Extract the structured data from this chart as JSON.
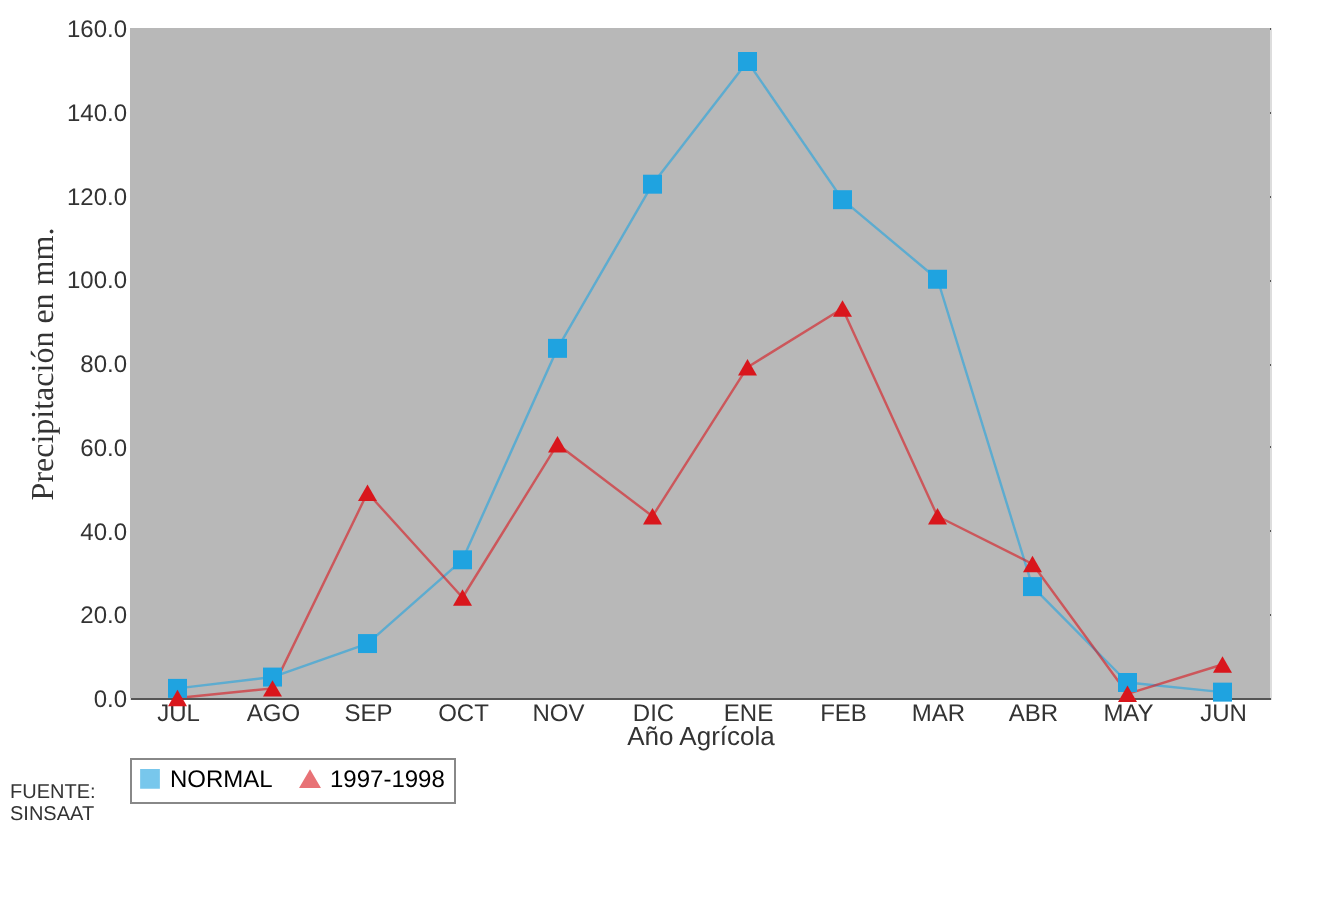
{
  "chart_data": {
    "type": "line",
    "xlabel": "Año Agrícola",
    "ylabel": "Precipitación en mm.",
    "categories": [
      "JUL",
      "AGO",
      "SEP",
      "OCT",
      "NOV",
      "DIC",
      "ENE",
      "FEB",
      "MAR",
      "ABR",
      "MAY",
      "JUN"
    ],
    "series": [
      {
        "name": "NORMAL",
        "color": "#1fa3e0",
        "marker": "square",
        "values": [
          2.3,
          5,
          13,
          33,
          83.5,
          122.7,
          152,
          119,
          100,
          26.6,
          3.7,
          1.4
        ]
      },
      {
        "name": "1997-1998",
        "color": "#d9161c",
        "marker": "triangle",
        "values": [
          0,
          2.3,
          49,
          24,
          60.6,
          43.4,
          79,
          93,
          43.4,
          32,
          1,
          8
        ]
      }
    ],
    "ylim": [
      0,
      160
    ],
    "yticks": [
      {
        "value": 0,
        "label": "0.0"
      },
      {
        "value": 20,
        "label": "20.0"
      },
      {
        "value": 40,
        "label": "40.0"
      },
      {
        "value": 60,
        "label": "60.0"
      },
      {
        "value": 80,
        "label": "80.0"
      },
      {
        "value": 100,
        "label": "100.0"
      },
      {
        "value": 120,
        "label": "120.0"
      },
      {
        "value": 140,
        "label": "140.0"
      },
      {
        "value": 160,
        "label": "160.0"
      }
    ],
    "grid": true,
    "legend": "bottom",
    "line_style": "solid",
    "annotations": [
      "FUENTE:\nSINSAAT"
    ]
  }
}
